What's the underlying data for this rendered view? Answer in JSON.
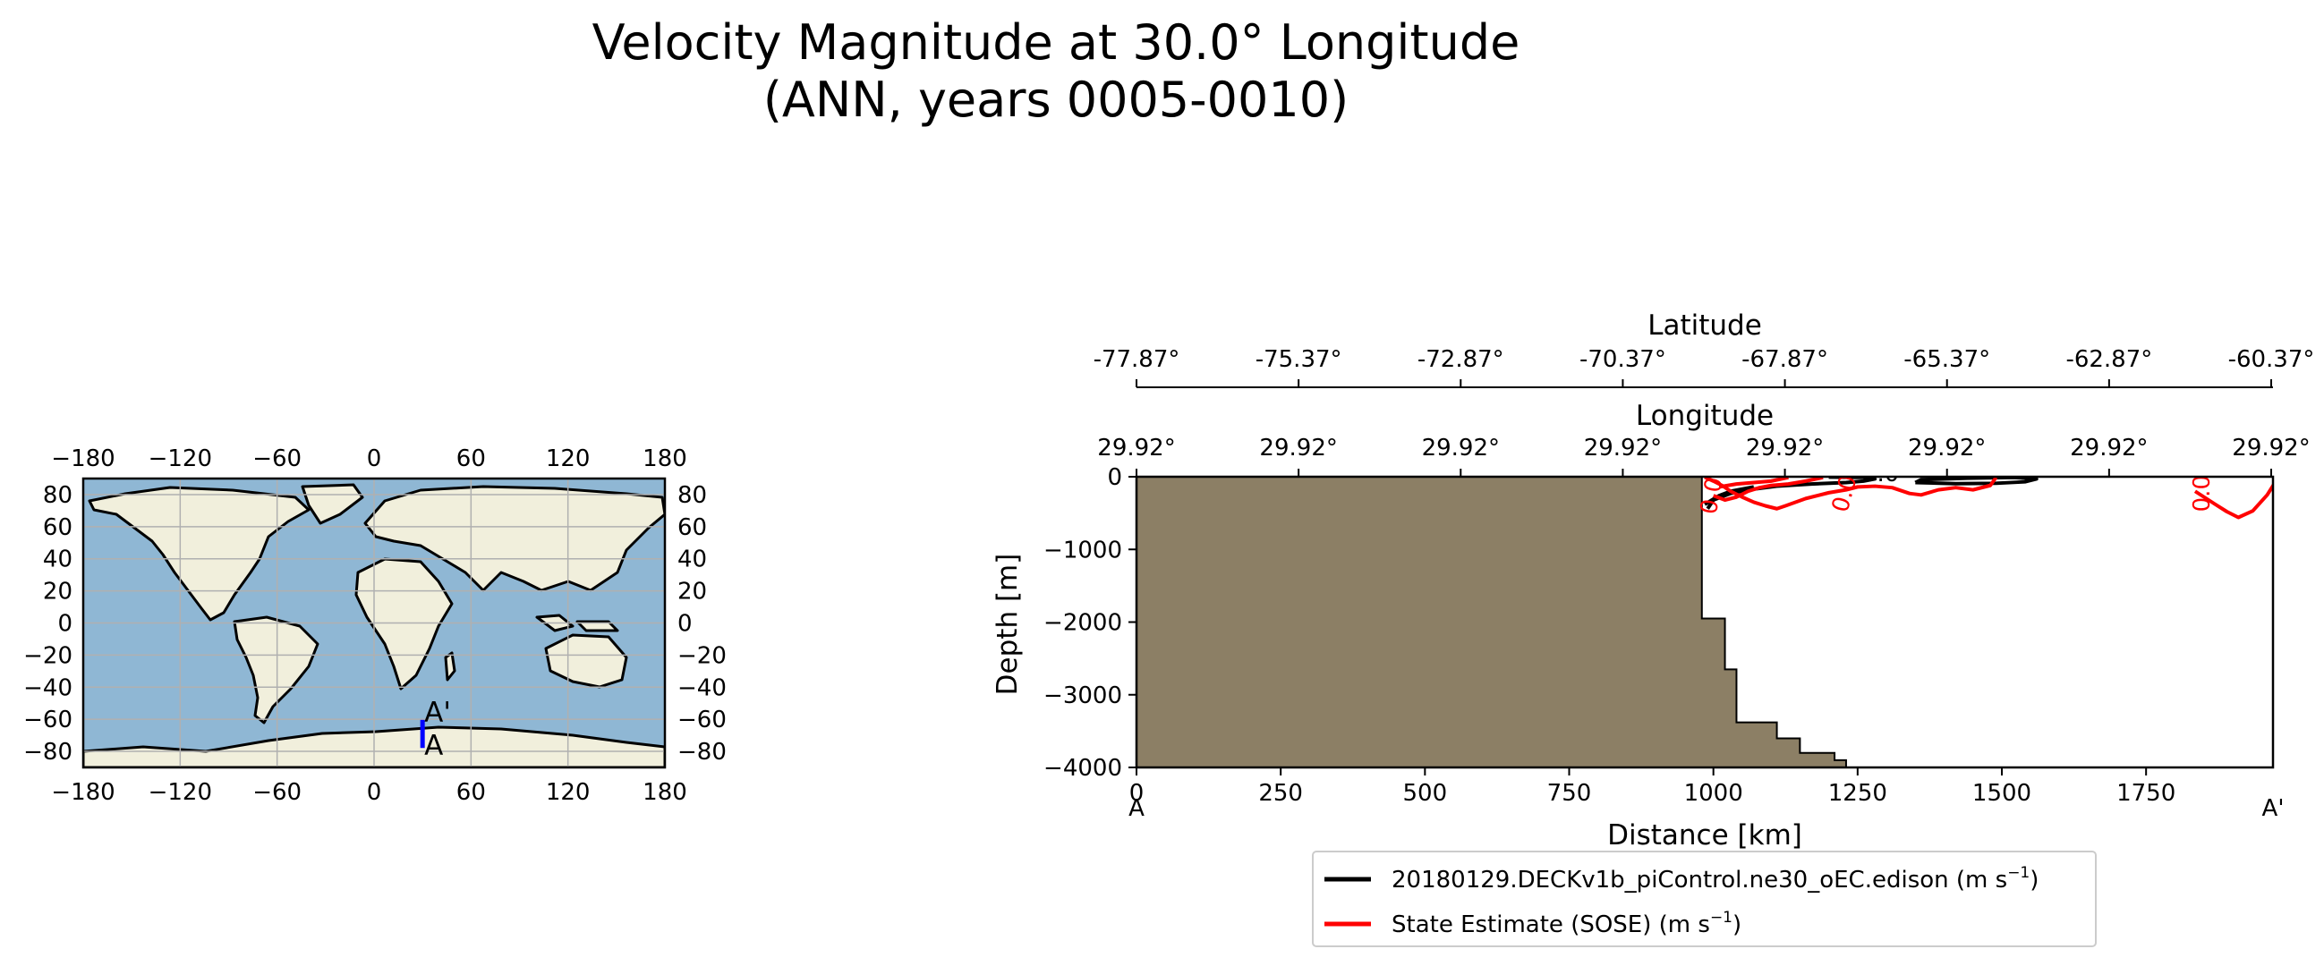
{
  "figure": {
    "title_line1": "Velocity Magnitude at 30.0° Longitude",
    "title_line2": "(ANN, years 0005-0010)"
  },
  "map": {
    "xticks": [
      -180,
      -120,
      -60,
      0,
      60,
      120,
      180
    ],
    "yticks": [
      80,
      60,
      40,
      20,
      0,
      -20,
      -40,
      -60,
      -80
    ],
    "ocean_color": "#8fb7d4",
    "land_color": "#f1efdc",
    "transect": {
      "lon": 30.0,
      "lat_start": -77.87,
      "lat_end": -60.37,
      "color": "#0000ff",
      "label_start": "A",
      "label_end": "A'"
    }
  },
  "chart_data": {
    "type": "line",
    "title": "",
    "xlabel": "Distance [km]",
    "ylabel": "Depth [m]",
    "xlim": [
      0,
      1970
    ],
    "ylim": [
      -4000,
      0
    ],
    "xticks": [
      0,
      250,
      500,
      750,
      1000,
      1250,
      1500,
      1750
    ],
    "yticks": [
      0,
      -1000,
      -2000,
      -3000,
      -4000
    ],
    "endpoint_labels": {
      "start": "A",
      "end": "A'"
    },
    "top_axes": [
      {
        "label": "Latitude",
        "ticks": [
          "-77.87°",
          "-75.37°",
          "-72.87°",
          "-70.37°",
          "-67.87°",
          "-65.37°",
          "-62.87°",
          "-60.37°"
        ]
      },
      {
        "label": "Longitude",
        "ticks": [
          "29.92°",
          "29.92°",
          "29.92°",
          "29.92°",
          "29.92°",
          "29.92°",
          "29.92°",
          "29.92°"
        ]
      }
    ],
    "bathymetry": {
      "color": "#8c7f65",
      "points": [
        [
          0,
          0
        ],
        [
          980,
          0
        ],
        [
          980,
          -1950
        ],
        [
          1020,
          -1950
        ],
        [
          1020,
          -2650
        ],
        [
          1040,
          -2650
        ],
        [
          1040,
          -3380
        ],
        [
          1110,
          -3380
        ],
        [
          1110,
          -3600
        ],
        [
          1150,
          -3600
        ],
        [
          1150,
          -3800
        ],
        [
          1210,
          -3800
        ],
        [
          1210,
          -3900
        ],
        [
          1230,
          -3900
        ],
        [
          1230,
          -4000
        ],
        [
          0,
          -4000
        ]
      ]
    },
    "series": [
      {
        "name": "20180129.DECKv1b_piControl.ne30_oEC.edison",
        "unit_base": "(m s",
        "unit_exp": "−1",
        "unit_close": ")",
        "color": "#000000",
        "contours": [
          [
            [
              990,
              -440
            ],
            [
              1000,
              -320
            ],
            [
              1030,
              -230
            ],
            [
              1060,
              -180
            ],
            [
              1110,
              -130
            ],
            [
              1170,
              -100
            ],
            [
              1230,
              -80
            ],
            [
              1260,
              -60
            ],
            [
              1280,
              -30
            ],
            [
              1260,
              -10
            ],
            [
              1200,
              -5
            ]
          ],
          [
            [
              985,
              -380
            ],
            [
              1010,
              -260
            ],
            [
              1030,
              -200
            ],
            [
              1070,
              -140
            ]
          ],
          [
            [
              1350,
              -80
            ],
            [
              1420,
              -95
            ],
            [
              1490,
              -90
            ],
            [
              1540,
              -70
            ],
            [
              1560,
              -30
            ],
            [
              1520,
              -10
            ],
            [
              1440,
              -20
            ],
            [
              1360,
              -40
            ],
            [
              1350,
              -80
            ]
          ]
        ],
        "labels": [
          {
            "text": "0.0",
            "x": 1290,
            "y": -60,
            "rotate": 0
          }
        ]
      },
      {
        "name": "State Estimate (SOSE)",
        "unit_base": "(m s",
        "unit_exp": "−1",
        "unit_close": ")",
        "color": "#ff0000",
        "contours": [
          [
            [
              985,
              -5
            ],
            [
              1000,
              -60
            ],
            [
              1015,
              -120
            ],
            [
              1030,
              -200
            ],
            [
              1050,
              -280
            ],
            [
              1070,
              -350
            ],
            [
              1090,
              -400
            ],
            [
              1110,
              -440
            ],
            [
              1125,
              -400
            ],
            [
              1160,
              -300
            ],
            [
              1200,
              -220
            ],
            [
              1230,
              -180
            ],
            [
              1250,
              -140
            ],
            [
              1280,
              -130
            ],
            [
              1310,
              -150
            ],
            [
              1340,
              -230
            ],
            [
              1360,
              -250
            ],
            [
              1390,
              -180
            ],
            [
              1420,
              -150
            ],
            [
              1450,
              -180
            ],
            [
              1480,
              -120
            ],
            [
              1490,
              -10
            ]
          ],
          [
            [
              1000,
              -260
            ],
            [
              1020,
              -320
            ],
            [
              1040,
              -280
            ],
            [
              1060,
              -200
            ],
            [
              1080,
              -150
            ],
            [
              1100,
              -120
            ],
            [
              1130,
              -100
            ],
            [
              1160,
              -60
            ],
            [
              1190,
              -10
            ]
          ],
          [
            [
              1010,
              -140
            ],
            [
              1040,
              -100
            ],
            [
              1070,
              -80
            ],
            [
              1100,
              -60
            ],
            [
              1130,
              -10
            ]
          ],
          [
            [
              1835,
              -200
            ],
            [
              1870,
              -380
            ],
            [
              1890,
              -480
            ],
            [
              1910,
              -560
            ],
            [
              1935,
              -470
            ],
            [
              1960,
              -250
            ],
            [
              1975,
              -60
            ],
            [
              1985,
              -5
            ]
          ]
        ],
        "labels": [
          {
            "text": "0.0",
            "x": 1240,
            "y": -260,
            "rotate": -75
          },
          {
            "text": "0.0",
            "x": 1860,
            "y": -230,
            "rotate": -90
          },
          {
            "text": "0.0",
            "x": 1010,
            "y": -280,
            "rotate": -80
          }
        ]
      }
    ],
    "legend_placement": "below"
  }
}
